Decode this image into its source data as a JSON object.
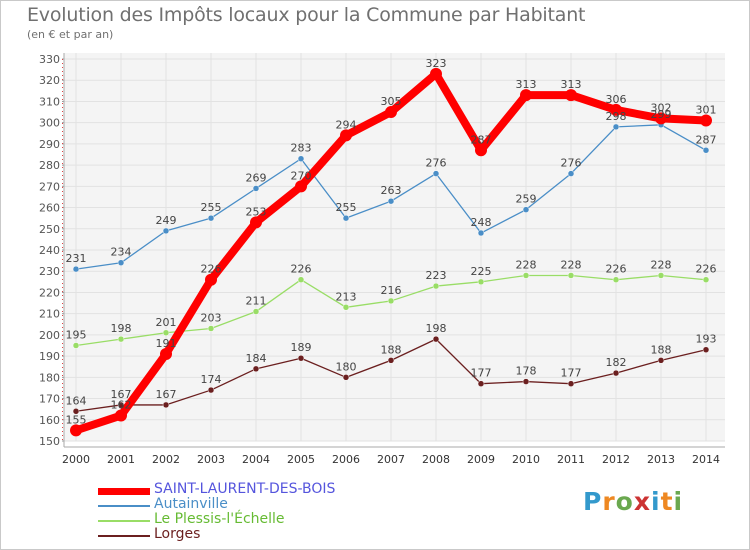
{
  "title": "Evolution des Impôts locaux pour la Commune par Habitant",
  "subtitle": "(en € et par an)",
  "brand": {
    "text": "Proxiti",
    "letters": [
      "P",
      "r",
      "o",
      "x",
      "i",
      "t",
      "i"
    ],
    "colors": [
      "#3399cc",
      "#ee8822",
      "#6aa84f",
      "#cc3333",
      "#3399cc",
      "#ee8822",
      "#6aa84f"
    ]
  },
  "chart_data": {
    "type": "line",
    "title": "Evolution des Impôts locaux pour la Commune par Habitant",
    "subtitle": "(en € et par an)",
    "xlabel": "",
    "ylabel": "",
    "ylim": [
      150,
      330
    ],
    "ytick_step": 10,
    "yticks": [
      "150",
      "160",
      "170",
      "180",
      "190",
      "200",
      "210",
      "220",
      "230",
      "240",
      "250",
      "260",
      "270",
      "280",
      "290",
      "300",
      "310",
      "320",
      "330"
    ],
    "x": [
      "2000",
      "2001",
      "2002",
      "2003",
      "2004",
      "2005",
      "2006",
      "2007",
      "2008",
      "2009",
      "2010",
      "2011",
      "2012",
      "2013",
      "2014"
    ],
    "grid": true,
    "legend_position": "bottom-left",
    "series": [
      {
        "name": "SAINT-LAURENT-DES-BOIS",
        "color": "#ff0000",
        "label_color": "#5555dd",
        "values": [
          155,
          162,
          191,
          226,
          253,
          270,
          294,
          305,
          323,
          287,
          313,
          313,
          306,
          302,
          301
        ],
        "labels": [
          "155",
          "162",
          "191",
          "226",
          "253",
          "270",
          "294",
          "305",
          "323",
          "287",
          "313",
          "313",
          "306",
          "302",
          "301"
        ]
      },
      {
        "name": "Autainville",
        "color": "#4a8ec7",
        "label_color": "#4a8ec7",
        "values": [
          231,
          234,
          249,
          255,
          269,
          283,
          255,
          263,
          276,
          248,
          259,
          276,
          298,
          299,
          287
        ],
        "labels": [
          "231",
          "234",
          "249",
          "255",
          "269",
          "283",
          "255",
          "263",
          "276",
          "248",
          "259",
          "276",
          "298",
          "299",
          "287"
        ]
      },
      {
        "name": "Le Plessis-l'Échelle",
        "color": "#99dd66",
        "label_color": "#66bb33",
        "values": [
          195,
          198,
          201,
          203,
          211,
          226,
          213,
          216,
          223,
          225,
          228,
          228,
          226,
          228,
          226
        ],
        "labels": [
          "195",
          "198",
          "201",
          "203",
          "211",
          "226",
          "213",
          "216",
          "223",
          "225",
          "228",
          "228",
          "226",
          "228",
          "226"
        ]
      },
      {
        "name": "Lorges",
        "color": "#6b1f1f",
        "label_color": "#6b1f1f",
        "values": [
          164,
          167,
          167,
          174,
          184,
          189,
          180,
          188,
          198,
          177,
          178,
          177,
          182,
          188,
          193
        ],
        "labels": [
          "164",
          "167",
          "167",
          "174",
          "184",
          "189",
          "180",
          "188",
          "198",
          "177",
          "178",
          "177",
          "182",
          "188",
          "193"
        ]
      }
    ]
  }
}
